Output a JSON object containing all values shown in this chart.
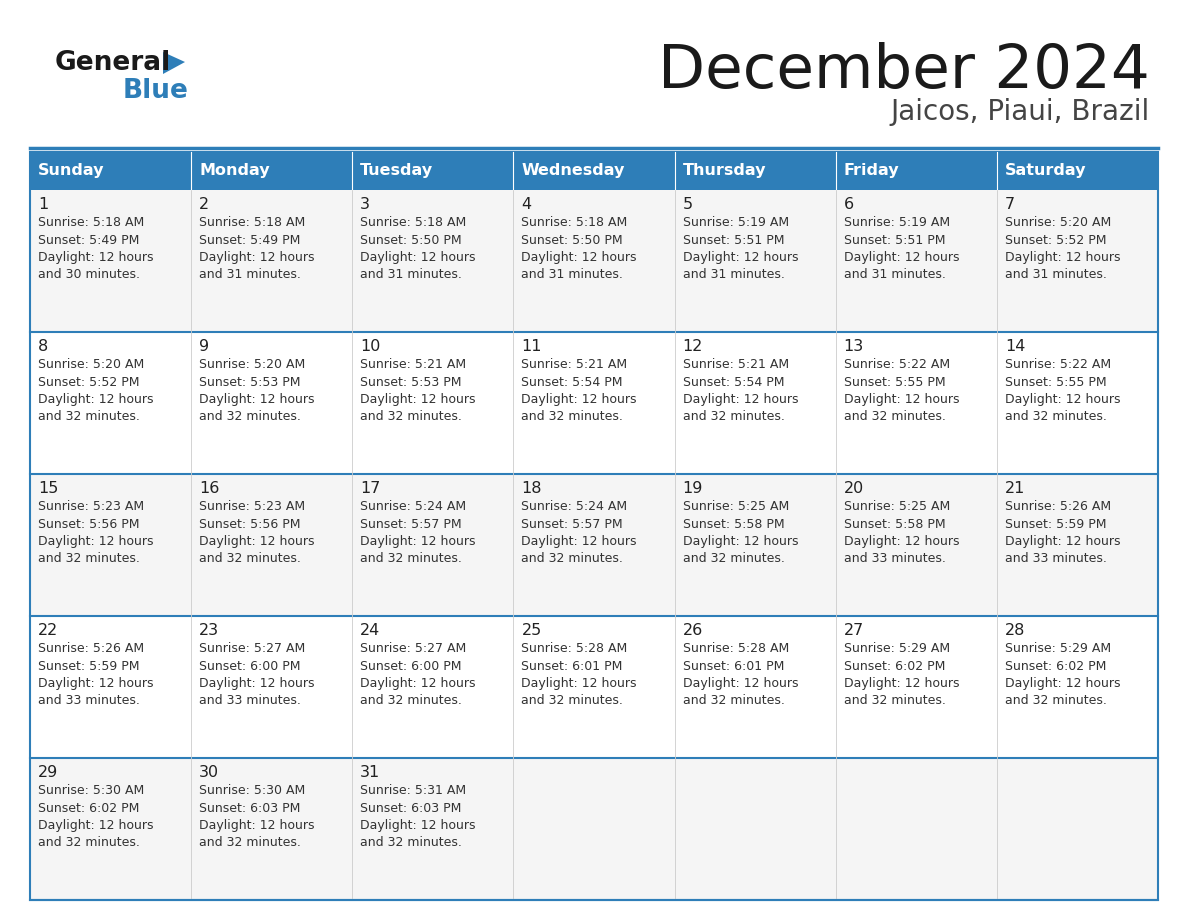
{
  "title": "December 2024",
  "subtitle": "Jaicos, Piaui, Brazil",
  "days_of_week": [
    "Sunday",
    "Monday",
    "Tuesday",
    "Wednesday",
    "Thursday",
    "Friday",
    "Saturday"
  ],
  "header_bg": "#2E7EB8",
  "header_text": "#FFFFFF",
  "row_bg_odd": "#F5F5F5",
  "row_bg_even": "#FFFFFF",
  "day_num_color": "#222222",
  "info_text_color": "#333333",
  "divider_color": "#2E7EB8",
  "bg_color": "#FFFFFF",
  "logo_general_color": "#1a1a1a",
  "logo_blue_color": "#2E7EB8",
  "title_color": "#1a1a1a",
  "subtitle_color": "#444444",
  "calendar_data": [
    [
      {
        "day": 1,
        "sunrise": "5:18 AM",
        "sunset": "5:49 PM",
        "daylight_hours": "12 hours",
        "daylight_mins": "and 30 minutes."
      },
      {
        "day": 2,
        "sunrise": "5:18 AM",
        "sunset": "5:49 PM",
        "daylight_hours": "12 hours",
        "daylight_mins": "and 31 minutes."
      },
      {
        "day": 3,
        "sunrise": "5:18 AM",
        "sunset": "5:50 PM",
        "daylight_hours": "12 hours",
        "daylight_mins": "and 31 minutes."
      },
      {
        "day": 4,
        "sunrise": "5:18 AM",
        "sunset": "5:50 PM",
        "daylight_hours": "12 hours",
        "daylight_mins": "and 31 minutes."
      },
      {
        "day": 5,
        "sunrise": "5:19 AM",
        "sunset": "5:51 PM",
        "daylight_hours": "12 hours",
        "daylight_mins": "and 31 minutes."
      },
      {
        "day": 6,
        "sunrise": "5:19 AM",
        "sunset": "5:51 PM",
        "daylight_hours": "12 hours",
        "daylight_mins": "and 31 minutes."
      },
      {
        "day": 7,
        "sunrise": "5:20 AM",
        "sunset": "5:52 PM",
        "daylight_hours": "12 hours",
        "daylight_mins": "and 31 minutes."
      }
    ],
    [
      {
        "day": 8,
        "sunrise": "5:20 AM",
        "sunset": "5:52 PM",
        "daylight_hours": "12 hours",
        "daylight_mins": "and 32 minutes."
      },
      {
        "day": 9,
        "sunrise": "5:20 AM",
        "sunset": "5:53 PM",
        "daylight_hours": "12 hours",
        "daylight_mins": "and 32 minutes."
      },
      {
        "day": 10,
        "sunrise": "5:21 AM",
        "sunset": "5:53 PM",
        "daylight_hours": "12 hours",
        "daylight_mins": "and 32 minutes."
      },
      {
        "day": 11,
        "sunrise": "5:21 AM",
        "sunset": "5:54 PM",
        "daylight_hours": "12 hours",
        "daylight_mins": "and 32 minutes."
      },
      {
        "day": 12,
        "sunrise": "5:21 AM",
        "sunset": "5:54 PM",
        "daylight_hours": "12 hours",
        "daylight_mins": "and 32 minutes."
      },
      {
        "day": 13,
        "sunrise": "5:22 AM",
        "sunset": "5:55 PM",
        "daylight_hours": "12 hours",
        "daylight_mins": "and 32 minutes."
      },
      {
        "day": 14,
        "sunrise": "5:22 AM",
        "sunset": "5:55 PM",
        "daylight_hours": "12 hours",
        "daylight_mins": "and 32 minutes."
      }
    ],
    [
      {
        "day": 15,
        "sunrise": "5:23 AM",
        "sunset": "5:56 PM",
        "daylight_hours": "12 hours",
        "daylight_mins": "and 32 minutes."
      },
      {
        "day": 16,
        "sunrise": "5:23 AM",
        "sunset": "5:56 PM",
        "daylight_hours": "12 hours",
        "daylight_mins": "and 32 minutes."
      },
      {
        "day": 17,
        "sunrise": "5:24 AM",
        "sunset": "5:57 PM",
        "daylight_hours": "12 hours",
        "daylight_mins": "and 32 minutes."
      },
      {
        "day": 18,
        "sunrise": "5:24 AM",
        "sunset": "5:57 PM",
        "daylight_hours": "12 hours",
        "daylight_mins": "and 32 minutes."
      },
      {
        "day": 19,
        "sunrise": "5:25 AM",
        "sunset": "5:58 PM",
        "daylight_hours": "12 hours",
        "daylight_mins": "and 32 minutes."
      },
      {
        "day": 20,
        "sunrise": "5:25 AM",
        "sunset": "5:58 PM",
        "daylight_hours": "12 hours",
        "daylight_mins": "and 33 minutes."
      },
      {
        "day": 21,
        "sunrise": "5:26 AM",
        "sunset": "5:59 PM",
        "daylight_hours": "12 hours",
        "daylight_mins": "and 33 minutes."
      }
    ],
    [
      {
        "day": 22,
        "sunrise": "5:26 AM",
        "sunset": "5:59 PM",
        "daylight_hours": "12 hours",
        "daylight_mins": "and 33 minutes."
      },
      {
        "day": 23,
        "sunrise": "5:27 AM",
        "sunset": "6:00 PM",
        "daylight_hours": "12 hours",
        "daylight_mins": "and 33 minutes."
      },
      {
        "day": 24,
        "sunrise": "5:27 AM",
        "sunset": "6:00 PM",
        "daylight_hours": "12 hours",
        "daylight_mins": "and 32 minutes."
      },
      {
        "day": 25,
        "sunrise": "5:28 AM",
        "sunset": "6:01 PM",
        "daylight_hours": "12 hours",
        "daylight_mins": "and 32 minutes."
      },
      {
        "day": 26,
        "sunrise": "5:28 AM",
        "sunset": "6:01 PM",
        "daylight_hours": "12 hours",
        "daylight_mins": "and 32 minutes."
      },
      {
        "day": 27,
        "sunrise": "5:29 AM",
        "sunset": "6:02 PM",
        "daylight_hours": "12 hours",
        "daylight_mins": "and 32 minutes."
      },
      {
        "day": 28,
        "sunrise": "5:29 AM",
        "sunset": "6:02 PM",
        "daylight_hours": "12 hours",
        "daylight_mins": "and 32 minutes."
      }
    ],
    [
      {
        "day": 29,
        "sunrise": "5:30 AM",
        "sunset": "6:02 PM",
        "daylight_hours": "12 hours",
        "daylight_mins": "and 32 minutes."
      },
      {
        "day": 30,
        "sunrise": "5:30 AM",
        "sunset": "6:03 PM",
        "daylight_hours": "12 hours",
        "daylight_mins": "and 32 minutes."
      },
      {
        "day": 31,
        "sunrise": "5:31 AM",
        "sunset": "6:03 PM",
        "daylight_hours": "12 hours",
        "daylight_mins": "and 32 minutes."
      },
      null,
      null,
      null,
      null
    ]
  ]
}
